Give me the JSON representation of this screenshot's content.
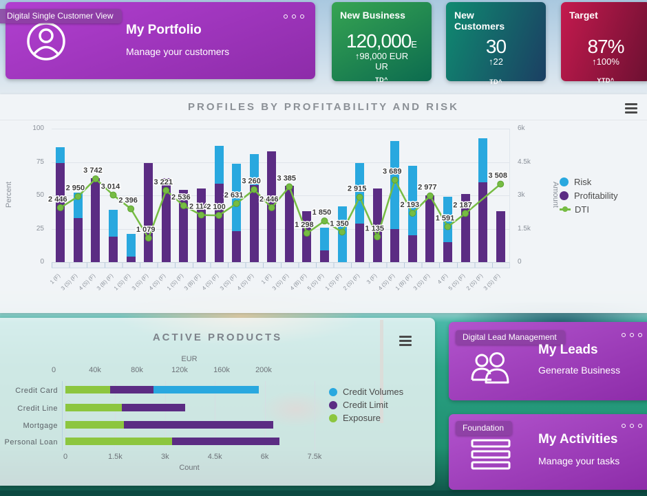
{
  "app_badge": "Digital Single Customer View",
  "cards": {
    "portfolio": {
      "title": "My Portfolio",
      "subtitle": "Manage your customers"
    },
    "new_business": {
      "title": "New Business",
      "value": "120,000",
      "unit": "E",
      "delta": "↑98,000 EUR",
      "delta_wrap": "UR",
      "period": "TD^"
    },
    "new_customers": {
      "title": "New Customers",
      "value": "30",
      "delta": "↑22",
      "period": "TD^"
    },
    "target": {
      "title": "Target",
      "value": "87%",
      "delta": "↑100%",
      "period": "YTD^"
    },
    "leads": {
      "badge": "Digital Lead Management",
      "title": "My Leads",
      "subtitle": "Generate Business"
    },
    "activities": {
      "badge": "Foundation",
      "title": "My Activities",
      "subtitle": "Manage your tasks"
    }
  },
  "colors": {
    "risk": "#29a8df",
    "profitability": "#5b2c83",
    "dti": "#76bc43",
    "credit_volumes": "#29a8df",
    "credit_limit": "#5b2c83",
    "exposure": "#8cc63f",
    "card_purple_from": "#b13fd0",
    "card_purple_to": "#8d2ca9",
    "kpi_green_from": "#36a452",
    "kpi_green_to": "#0c6b4f",
    "kpi_teal_from": "#0f8a70",
    "kpi_teal_to": "#1b3f63",
    "kpi_red_from": "#c41a4e",
    "kpi_red_to": "#6b1031"
  },
  "chart_data": [
    {
      "type": "bar",
      "combo": "stacked-bar+line",
      "title": "PROFILES BY PROFITABILITY AND RISK",
      "left_axis": {
        "label": "Percent",
        "ticks": [
          0,
          25,
          50,
          75,
          100
        ],
        "range": [
          0,
          100
        ]
      },
      "right_axis": {
        "label": "Amount",
        "ticks": [
          "0",
          "1.5k",
          "3k",
          "4.5k",
          "6k"
        ],
        "range": [
          0,
          6000
        ]
      },
      "legend": [
        {
          "label": "Risk",
          "color": "#29a8df"
        },
        {
          "label": "Profitability",
          "color": "#5b2c83"
        },
        {
          "label": "DTI",
          "color": "#76bc43"
        }
      ],
      "categories": [
        "1 (F)",
        "3 (S) (F)",
        "4 (S) (F)",
        "3 (B) (F)",
        "1 (S) (F)",
        "3 (S) (F)",
        "4 (S) (F)",
        "1 (S) (F)",
        "3 (B) (F)",
        "4 (S) (F)",
        "3 (S) (F)",
        "4 (S) (F)",
        "1 (F)",
        "3 (S) (F)",
        "4 (B) (F)",
        "5 (S) (F)",
        "1 (S) (F)",
        "2 (S) (F)",
        "3 (F)",
        "4 (S) (F)",
        "1 (B) (F)",
        "3 (S) (F)",
        "4 (F)",
        "5 (S) (F)",
        "2 (S) (F)",
        "3 (S) (F)"
      ],
      "series": [
        {
          "name": "Profitability",
          "type": "bar",
          "axis": "left",
          "color": "#5b2c83",
          "values": [
            74,
            33,
            63,
            19,
            4,
            74,
            63,
            54,
            55,
            59,
            23,
            58,
            83,
            57,
            38,
            9,
            0,
            29,
            55,
            25,
            20,
            50,
            15,
            51,
            60,
            38
          ]
        },
        {
          "name": "Risk",
          "type": "bar",
          "axis": "left",
          "stacked": true,
          "color": "#29a8df",
          "values": [
            12,
            19,
            0,
            20,
            17,
            0,
            0,
            0,
            0,
            28,
            51,
            23,
            0,
            0,
            0,
            17,
            42,
            45,
            0,
            66,
            52,
            0,
            34,
            0,
            33,
            0
          ]
        },
        {
          "name": "DTI",
          "type": "line",
          "axis": "right",
          "color": "#76bc43",
          "values": [
            2446,
            2950,
            3742,
            3014,
            2396,
            1079,
            3221,
            2536,
            2114,
            2100,
            2631,
            3260,
            2446,
            3385,
            1298,
            1850,
            1350,
            2915,
            1135,
            3689,
            2193,
            2977,
            1591,
            2187,
            null,
            3508
          ]
        }
      ]
    },
    {
      "type": "bar",
      "orientation": "horizontal",
      "stacked": true,
      "title": "ACTIVE PRODUCTS",
      "categories": [
        "Credit Card",
        "Credit Line",
        "Mortgage",
        "Personal Loan"
      ],
      "top_axis": {
        "label": "EUR",
        "ticks": [
          "0",
          "40k",
          "80k",
          "120k",
          "160k",
          "200k"
        ]
      },
      "bottom_axis": {
        "label": "Count",
        "ticks": [
          "0",
          "1.5k",
          "3k",
          "4.5k",
          "6k",
          "7.5k"
        ],
        "range": [
          0,
          7500
        ]
      },
      "legend": [
        {
          "label": "Credit Volumes",
          "color": "#29a8df"
        },
        {
          "label": "Credit Limit",
          "color": "#5b2c83"
        },
        {
          "label": "Exposure",
          "color": "#8cc63f"
        }
      ],
      "series": [
        {
          "name": "Exposure",
          "color": "#8cc63f",
          "values": [
            1350,
            1700,
            1750,
            3200
          ]
        },
        {
          "name": "Credit Limit",
          "color": "#5b2c83",
          "values": [
            1300,
            1900,
            4500,
            3250
          ]
        },
        {
          "name": "Credit Volumes",
          "color": "#29a8df",
          "values": [
            3170,
            0,
            0,
            0
          ]
        }
      ]
    }
  ]
}
